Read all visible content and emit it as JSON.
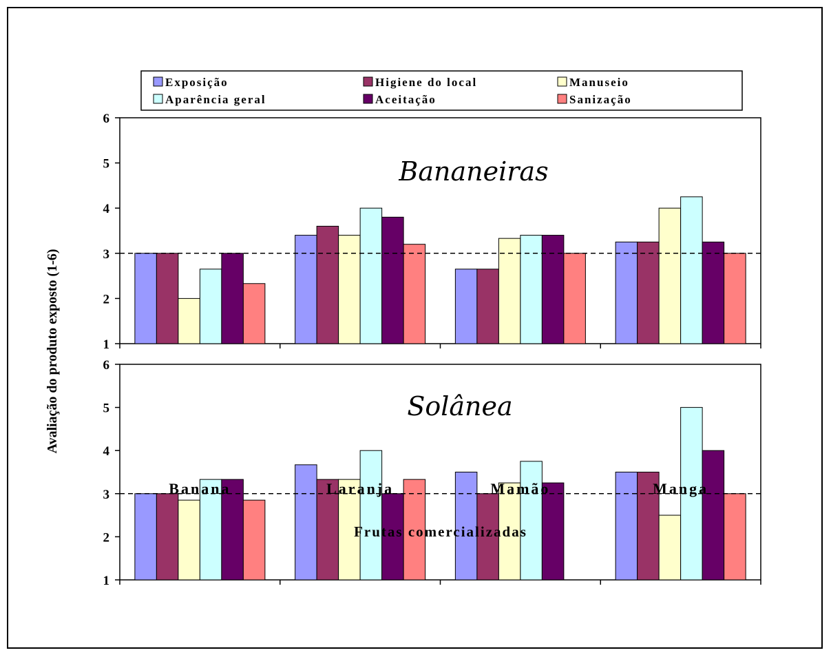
{
  "chart_data": {
    "type": "bar",
    "xlabel": "Frutas comercializadas",
    "ylabel": "Avaliação do produto exposto (1-6)",
    "ylim": [
      1,
      6
    ],
    "yticks": [
      "1",
      "2",
      "3",
      "4",
      "5",
      "6"
    ],
    "reference_line": 3,
    "categories": [
      "Banana",
      "Laranja",
      "Mamão",
      "Manga"
    ],
    "legend": {
      "placement": "top",
      "series": [
        {
          "name": "Exposição",
          "color": "#9999ff"
        },
        {
          "name": "Higiene do local",
          "color": "#993366"
        },
        {
          "name": "Manuseio",
          "color": "#ffffcc"
        },
        {
          "name": "Aparência geral",
          "color": "#ccffff"
        },
        {
          "name": "Aceitação",
          "color": "#660066"
        },
        {
          "name": "Sanização",
          "color": "#ff8080"
        }
      ]
    },
    "panels": [
      {
        "title": "Bananeiras",
        "series": [
          {
            "name": "Exposição",
            "values": [
              3.0,
              3.4,
              2.65,
              3.25
            ]
          },
          {
            "name": "Higiene do local",
            "values": [
              3.0,
              3.6,
              2.65,
              3.25
            ]
          },
          {
            "name": "Manuseio",
            "values": [
              2.0,
              3.4,
              3.33,
              4.0
            ]
          },
          {
            "name": "Aparência geral",
            "values": [
              2.65,
              4.0,
              3.4,
              4.25
            ]
          },
          {
            "name": "Aceitação",
            "values": [
              3.0,
              3.8,
              3.4,
              3.25
            ]
          },
          {
            "name": "Sanização",
            "values": [
              2.33,
              3.2,
              3.0,
              3.0
            ]
          }
        ]
      },
      {
        "title": "Solânea",
        "series": [
          {
            "name": "Exposição",
            "values": [
              3.0,
              3.67,
              3.5,
              3.5
            ]
          },
          {
            "name": "Higiene do local",
            "values": [
              3.0,
              3.33,
              3.0,
              3.5
            ]
          },
          {
            "name": "Manuseio",
            "values": [
              2.85,
              3.33,
              3.25,
              2.5
            ]
          },
          {
            "name": "Aparência geral",
            "values": [
              3.33,
              4.0,
              3.75,
              5.0
            ]
          },
          {
            "name": "Aceitação",
            "values": [
              3.33,
              3.0,
              3.25,
              4.0
            ]
          },
          {
            "name": "Sanização",
            "values": [
              2.85,
              3.33,
              null,
              3.0
            ]
          }
        ]
      }
    ]
  }
}
